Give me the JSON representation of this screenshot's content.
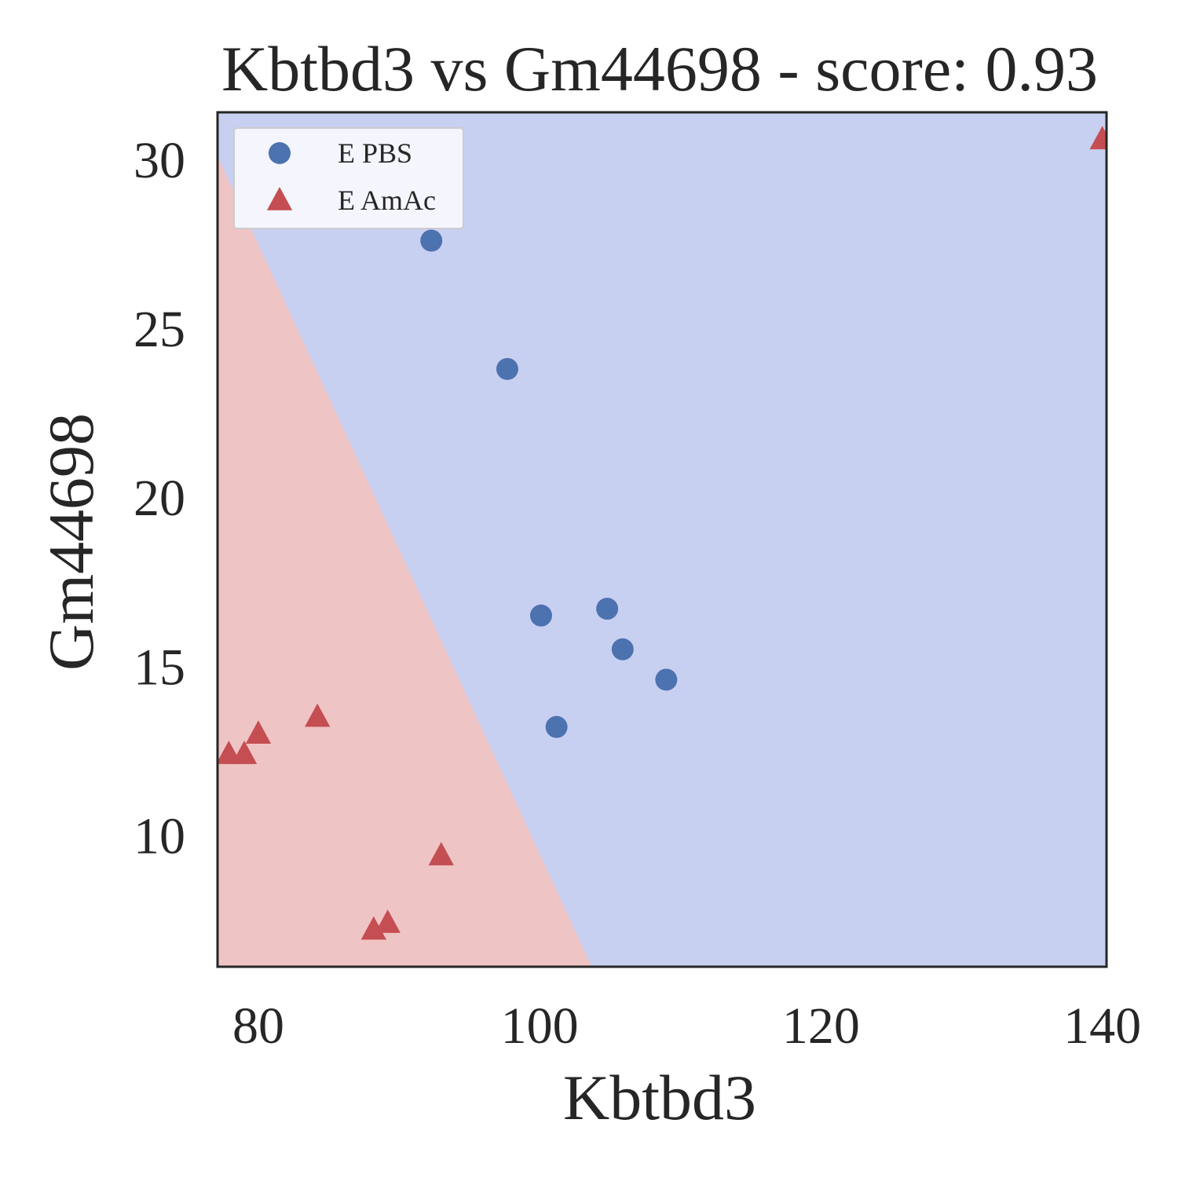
{
  "chart_data": {
    "type": "scatter",
    "title": "Kbtbd3 vs Gm44698 - score: 0.93",
    "xlabel": "Kbtbd3",
    "ylabel": "Gm44698",
    "xlim": [
      77.1,
      140.3
    ],
    "ylim": [
      6.1,
      31.4
    ],
    "xticks": [
      80,
      100,
      120,
      140
    ],
    "yticks": [
      10,
      15,
      20,
      25,
      30
    ],
    "grid": false,
    "legend_position": "top-left",
    "decision_boundary": {
      "points": [
        [
          77.1,
          30.1
        ],
        [
          103.7,
          6.1
        ]
      ],
      "region_colors": {
        "E AmAc": "#efc4c4",
        "E PBS": "#c8d0f1"
      }
    },
    "series": [
      {
        "name": "E PBS",
        "marker": "circle",
        "color": "#4c72b0",
        "points": [
          [
            92.3,
            27.6
          ],
          [
            97.7,
            23.8
          ],
          [
            100.1,
            16.5
          ],
          [
            104.8,
            16.7
          ],
          [
            105.9,
            15.5
          ],
          [
            101.2,
            13.2
          ],
          [
            109.0,
            14.6
          ]
        ]
      },
      {
        "name": "E AmAc",
        "marker": "triangle",
        "color": "#c44e52",
        "points": [
          [
            140.0,
            30.6
          ],
          [
            84.2,
            13.5
          ],
          [
            80.0,
            13.0
          ],
          [
            77.9,
            12.4
          ],
          [
            79.0,
            12.4
          ],
          [
            93.0,
            9.4
          ],
          [
            88.2,
            7.2
          ],
          [
            89.2,
            7.4
          ]
        ]
      }
    ]
  }
}
